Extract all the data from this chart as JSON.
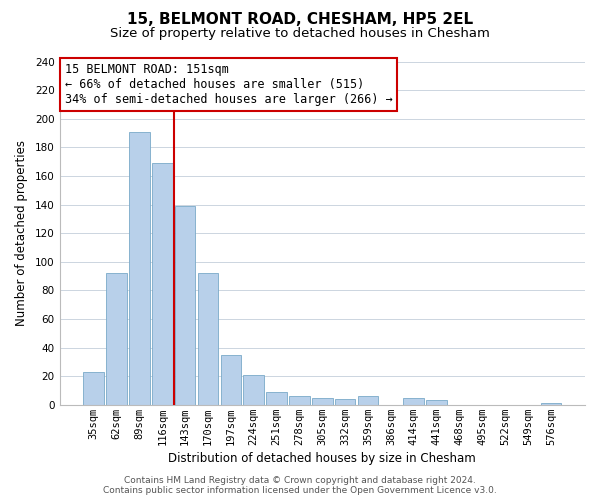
{
  "title": "15, BELMONT ROAD, CHESHAM, HP5 2EL",
  "subtitle": "Size of property relative to detached houses in Chesham",
  "xlabel": "Distribution of detached houses by size in Chesham",
  "ylabel": "Number of detached properties",
  "bar_labels": [
    "35sqm",
    "62sqm",
    "89sqm",
    "116sqm",
    "143sqm",
    "170sqm",
    "197sqm",
    "224sqm",
    "251sqm",
    "278sqm",
    "305sqm",
    "332sqm",
    "359sqm",
    "386sqm",
    "414sqm",
    "441sqm",
    "468sqm",
    "495sqm",
    "522sqm",
    "549sqm",
    "576sqm"
  ],
  "bar_values": [
    23,
    92,
    191,
    169,
    139,
    92,
    35,
    21,
    9,
    6,
    5,
    4,
    6,
    0,
    5,
    3,
    0,
    0,
    0,
    0,
    1
  ],
  "bar_color": "#b8d0ea",
  "bar_edge_color": "#7aaac8",
  "vline_x": 3.5,
  "vline_color": "#cc0000",
  "ylim": [
    0,
    240
  ],
  "yticks": [
    0,
    20,
    40,
    60,
    80,
    100,
    120,
    140,
    160,
    180,
    200,
    220,
    240
  ],
  "annotation_title": "15 BELMONT ROAD: 151sqm",
  "annotation_line1": "← 66% of detached houses are smaller (515)",
  "annotation_line2": "34% of semi-detached houses are larger (266) →",
  "footer_line1": "Contains HM Land Registry data © Crown copyright and database right 2024.",
  "footer_line2": "Contains public sector information licensed under the Open Government Licence v3.0.",
  "background_color": "#ffffff",
  "grid_color": "#ccd5e0",
  "title_fontsize": 11,
  "subtitle_fontsize": 9.5,
  "annotation_fontsize": 8.5,
  "axis_label_fontsize": 8.5,
  "tick_fontsize": 7.5,
  "footer_fontsize": 6.5
}
